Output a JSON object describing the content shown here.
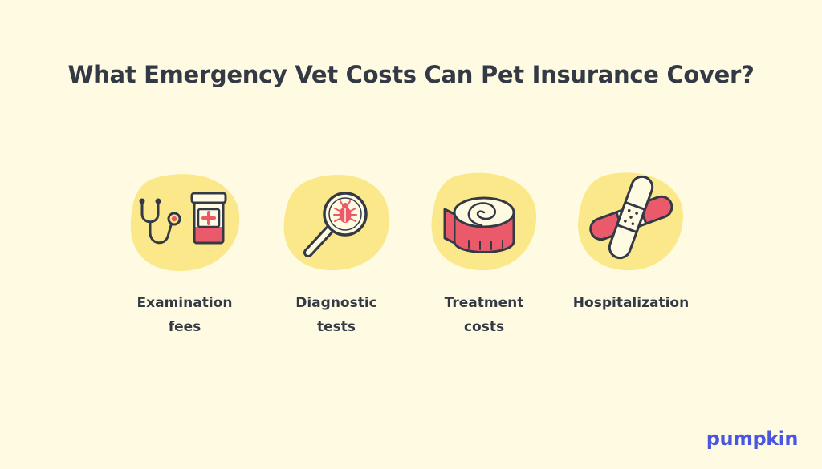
{
  "title": "What Emergency Vet Costs Can Pet Insurance Cover?",
  "items": [
    {
      "icon": "stethoscope-pill-bottle-icon",
      "line1": "Examination",
      "line2": "fees"
    },
    {
      "icon": "magnifying-glass-bug-icon",
      "line1": "Diagnostic",
      "line2": "tests"
    },
    {
      "icon": "bandage-roll-icon",
      "line1": "Treatment",
      "line2": "costs"
    },
    {
      "icon": "crossed-bandages-icon",
      "line1": "Hospitalization",
      "line2": ""
    }
  ],
  "brand": {
    "name": "pumpkin",
    "color": "#4a56e2"
  },
  "colors": {
    "background": "#fffbe3",
    "blob": "#fbe88a",
    "accent_red": "#ea5a6a",
    "ink": "#343a45"
  }
}
